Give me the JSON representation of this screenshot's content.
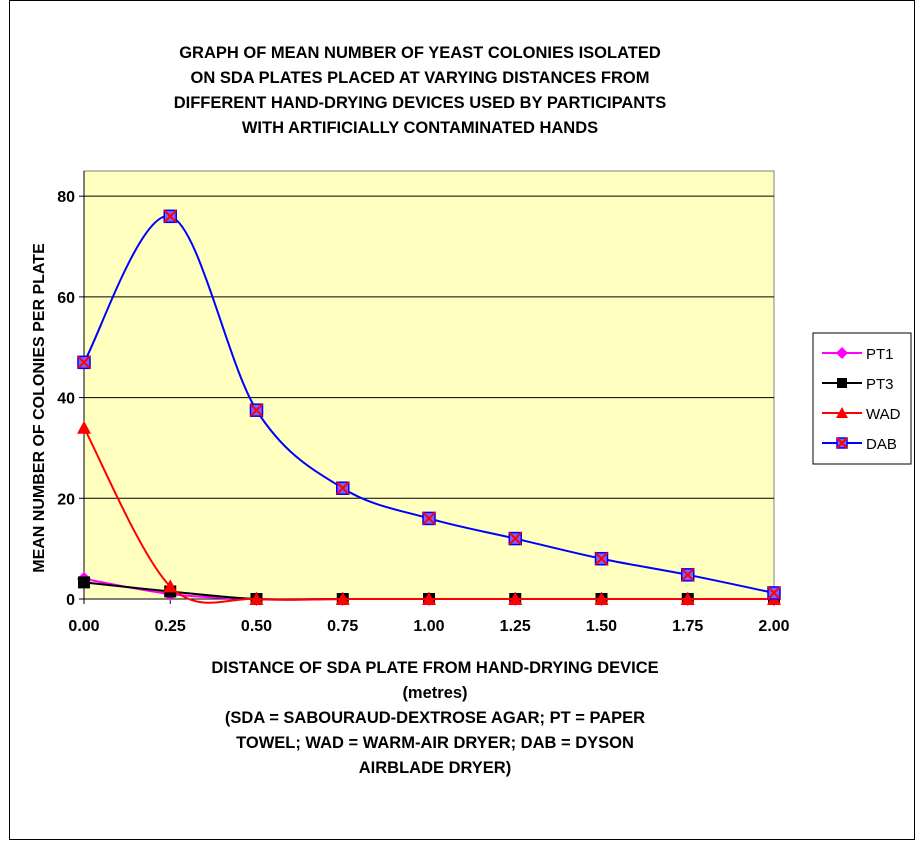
{
  "chart_data": {
    "type": "line",
    "title_lines": [
      "GRAPH OF MEAN NUMBER OF YEAST COLONIES ISOLATED",
      "ON SDA PLATES PLACED AT VARYING DISTANCES FROM",
      "DIFFERENT HAND-DRYING DEVICES USED BY PARTICIPANTS",
      "WITH ARTIFICIALLY CONTAMINATED HANDS"
    ],
    "xlabel_lines": [
      "DISTANCE OF SDA PLATE FROM HAND-DRYING DEVICE",
      "(metres)",
      "(SDA = SABOURAUD-DEXTROSE AGAR; PT = PAPER",
      "TOWEL; WAD = WARM-AIR DRYER; DAB = DYSON",
      "AIRBLADE DRYER)"
    ],
    "ylabel": "MEAN NUMBER OF COLONIES PER PLATE",
    "x": [
      0.0,
      0.25,
      0.5,
      0.75,
      1.0,
      1.25,
      1.5,
      1.75,
      2.0
    ],
    "x_tick_labels": [
      "0.00",
      "0.25",
      "0.50",
      "0.75",
      "1.00",
      "1.25",
      "1.50",
      "1.75",
      "2.00"
    ],
    "y_ticks": [
      0,
      20,
      40,
      60,
      80
    ],
    "xlim": [
      0,
      2
    ],
    "ylim": [
      0,
      85
    ],
    "grid": true,
    "plot_background": "#ffffc0",
    "legend_position": "right",
    "smooth_lines": true,
    "series": [
      {
        "name": "PT1",
        "color": "#ff00ff",
        "marker": "diamond",
        "values": [
          4,
          1,
          0,
          0,
          0,
          0,
          0,
          0,
          0
        ]
      },
      {
        "name": "PT3",
        "color": "#000000",
        "marker": "square",
        "values": [
          3.3,
          1.5,
          0,
          0,
          0,
          0,
          0,
          0,
          0
        ]
      },
      {
        "name": "WAD",
        "color": "#ff0000",
        "marker": "triangle",
        "values": [
          34,
          2.5,
          0,
          0,
          0,
          0,
          0,
          0,
          0
        ]
      },
      {
        "name": "DAB",
        "color": "#0000ff",
        "marker": "x-square",
        "marker_fill": "#8060ff",
        "marker_cross": "#ff0000",
        "values": [
          47,
          76,
          37.5,
          22,
          16,
          12,
          8,
          4.8,
          1.2
        ]
      }
    ]
  }
}
